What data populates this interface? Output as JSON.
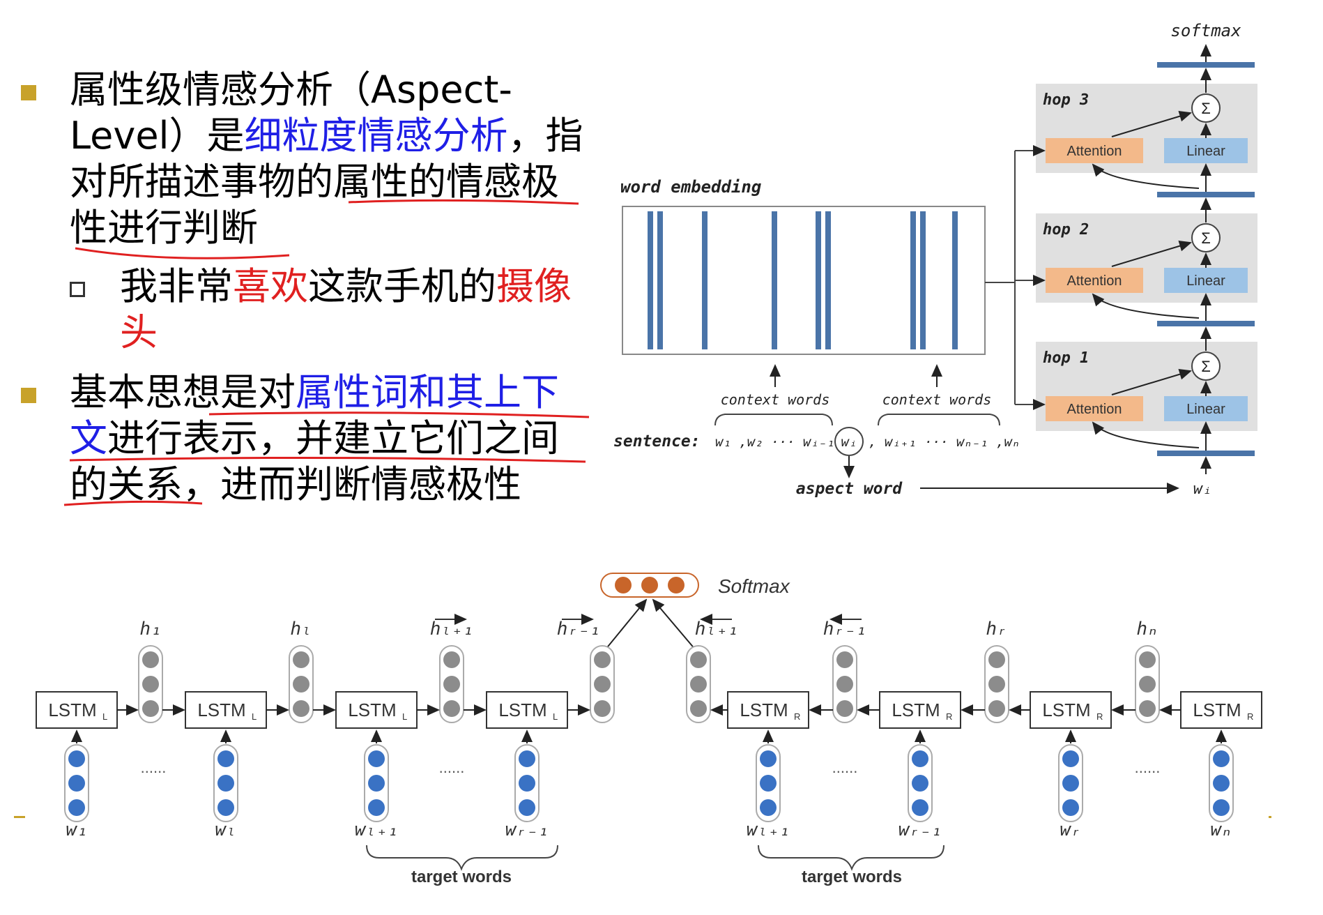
{
  "bullets": {
    "b1": {
      "l1": "属性级情感分析（Aspect-",
      "l2a": "Level）是",
      "l2b": "细粒度情感分析",
      "l2c": "，指",
      "l3": "对所描述事物的属性的情感极",
      "l4": "性进行判断"
    },
    "sub1": {
      "a": "我非常",
      "b": "喜欢",
      "c": "这款手机的",
      "d": "摄像",
      "e": "头"
    },
    "b2": {
      "l1a": "基本思想是对",
      "l1b": "属性词和其上下",
      "l2a": "文",
      "l2b": "进行表示，并建立它们之间",
      "l3": "的关系，进而判断情感极性"
    }
  },
  "memnet": {
    "softmax": "softmax",
    "word_embedding": "word embedding",
    "hops": [
      "hop 3",
      "hop 2",
      "hop 1"
    ],
    "attention": "Attention",
    "linear": "Linear",
    "sigma": "Σ",
    "context_words": "context words",
    "sentence_label": "sentence:",
    "sentence_left": "w₁ ,w₂ ··· wᵢ₋₁ ,",
    "sentence_mid": "wᵢ",
    "sentence_right": ", wᵢ₊₁ ··· wₙ₋₁ ,wₙ",
    "aspect_word": "aspect word",
    "aspect_symbol": "wᵢ"
  },
  "tdlstm": {
    "softmax": "Softmax",
    "lstm_l": "LSTM",
    "lstm_l_sub": "L",
    "lstm_r": "LSTM",
    "lstm_r_sub": "R",
    "hidden_labels": [
      "h₁",
      "hₗ",
      "hₗ₊₁",
      "hᵣ₋₁",
      "hₗ₊₁",
      "hᵣ₋₁",
      "hᵣ",
      "hₙ"
    ],
    "word_labels": [
      "w₁",
      "wₗ",
      "wₗ₊₁",
      "wᵣ₋₁",
      "wₗ₊₁",
      "wᵣ₋₁",
      "wᵣ",
      "wₙ"
    ],
    "ellipsis": "......",
    "target_words": "target words"
  },
  "colors": {
    "bullet": "#c8a22a",
    "blue_text": "#1f1fe6",
    "red_text": "#e02020",
    "embedding_bar": "#4a74a8",
    "attention_fill": "#f3b98a",
    "linear_fill": "#9dc3e6",
    "hop_bg": "#e0e0e0",
    "softmax_dot": "#c8652a",
    "word_dot": "#3a72c4",
    "hidden_dot": "#8c8c8c"
  }
}
